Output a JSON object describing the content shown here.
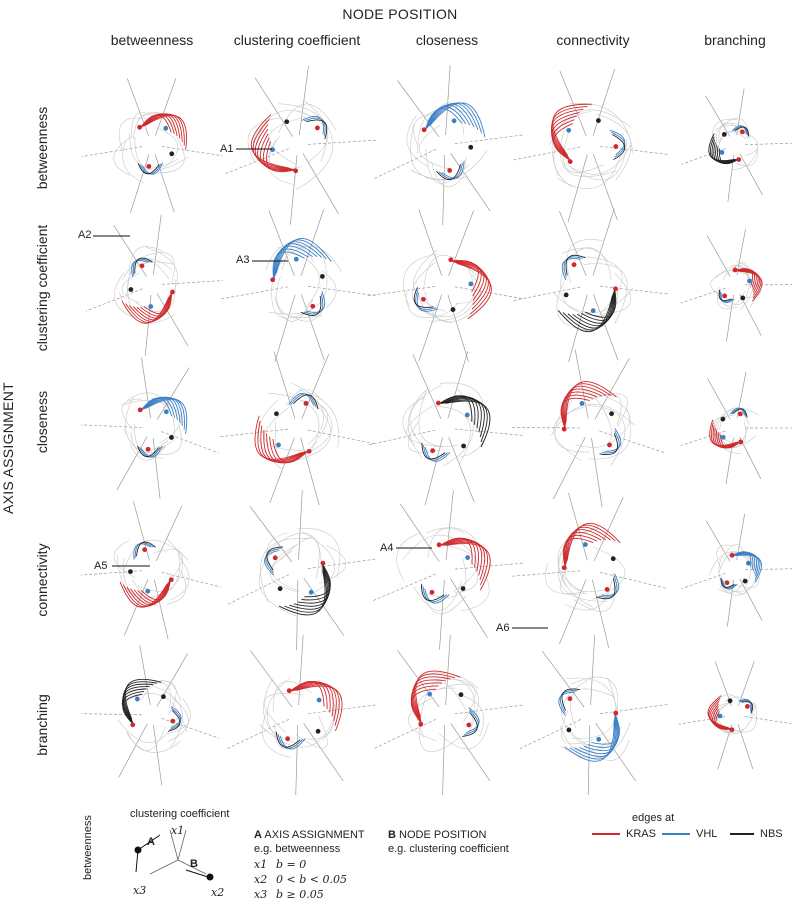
{
  "title": "NODE POSITION",
  "side_title": "AXIS ASSIGNMENT",
  "columns": [
    "betweenness",
    "clustering coefficient",
    "closeness",
    "connectivity",
    "branching"
  ],
  "rows": [
    "betweenness",
    "clustering coefficient",
    "closeness",
    "connectivity",
    "branching"
  ],
  "annotations": [
    "A1",
    "A2",
    "A3",
    "A4",
    "A5",
    "A6"
  ],
  "colors": {
    "kras": "#d0282c",
    "vhl": "#3b7fc4",
    "nbs": "#222222",
    "grey": "#c8c8c8"
  },
  "legend": {
    "header": "edges at",
    "items": [
      {
        "label": "KRAS",
        "color": "#d0282c"
      },
      {
        "label": "VHL",
        "color": "#3b7fc4"
      },
      {
        "label": "NBS",
        "color": "#222222"
      }
    ]
  },
  "key": {
    "x_label": "clustering coefficient",
    "y_label": "betweenness",
    "x1": "x1",
    "x2": "x2",
    "x3": "x3",
    "A": "A",
    "B": "B"
  },
  "explain": {
    "a_letter": "A",
    "a_title": "AXIS ASSIGNMENT",
    "a_example": "e.g. betweenness",
    "b_letter": "B",
    "b_title": "NODE POSITION",
    "b_example": "e.g. clustering coefficient",
    "rules": [
      {
        "axis": "x1",
        "cond": "b = 0"
      },
      {
        "axis": "x2",
        "cond": "0 < b < 0.05"
      },
      {
        "axis": "x3",
        "cond": "b ≥ 0.05"
      }
    ]
  }
}
